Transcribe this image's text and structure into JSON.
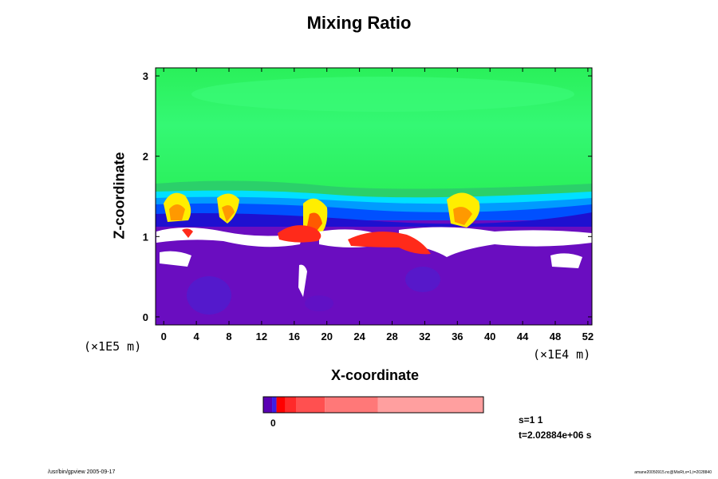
{
  "chart_data": {
    "type": "heatmap",
    "title": "Mixing Ratio",
    "xlabel": "X-coordinate",
    "ylabel": "Z-coordinate",
    "x_unit": "(×1E4 m)",
    "y_unit": "(×1E5 m)",
    "xlim": [
      -1,
      52.5
    ],
    "ylim": [
      -0.1,
      3.1
    ],
    "x_ticks": [
      "0",
      "4",
      "8",
      "12",
      "16",
      "20",
      "24",
      "28",
      "32",
      "36",
      "40",
      "44",
      "48",
      "52"
    ],
    "x_tick_values": [
      0,
      4,
      8,
      12,
      16,
      20,
      24,
      28,
      32,
      36,
      40,
      44,
      48,
      52
    ],
    "y_ticks": [
      "0",
      "1",
      "2",
      "3"
    ],
    "y_tick_values": [
      0,
      1,
      2,
      3
    ],
    "colorbar": {
      "label": "0",
      "colors": [
        "#5a00b4",
        "#3c1ee6",
        "#ff0000",
        "#ff2a2a",
        "#ff5050",
        "#ff7878",
        "#ff9f9f"
      ]
    },
    "layer_colors": {
      "upper": "#2af05a",
      "upper_light": "#3cfc7a",
      "band": [
        "#2bd06a",
        "#00e0ff",
        "#009bff",
        "#0050ff",
        "#1e10d0"
      ],
      "plume": [
        "#ffee00",
        "#ff9900",
        "#ff5a00"
      ],
      "lower": "#6a0dc0",
      "swirl": "#4b1fd1",
      "red": "#ff2a1a"
    }
  },
  "annotations": {
    "step": "s=1 1",
    "time": "t=2.02884e+06 s"
  },
  "footer": {
    "left": "/usr/bin/gpview 2005-09-17",
    "right": "amane20050915.nc@MixRt,x=1,t=2028840"
  }
}
